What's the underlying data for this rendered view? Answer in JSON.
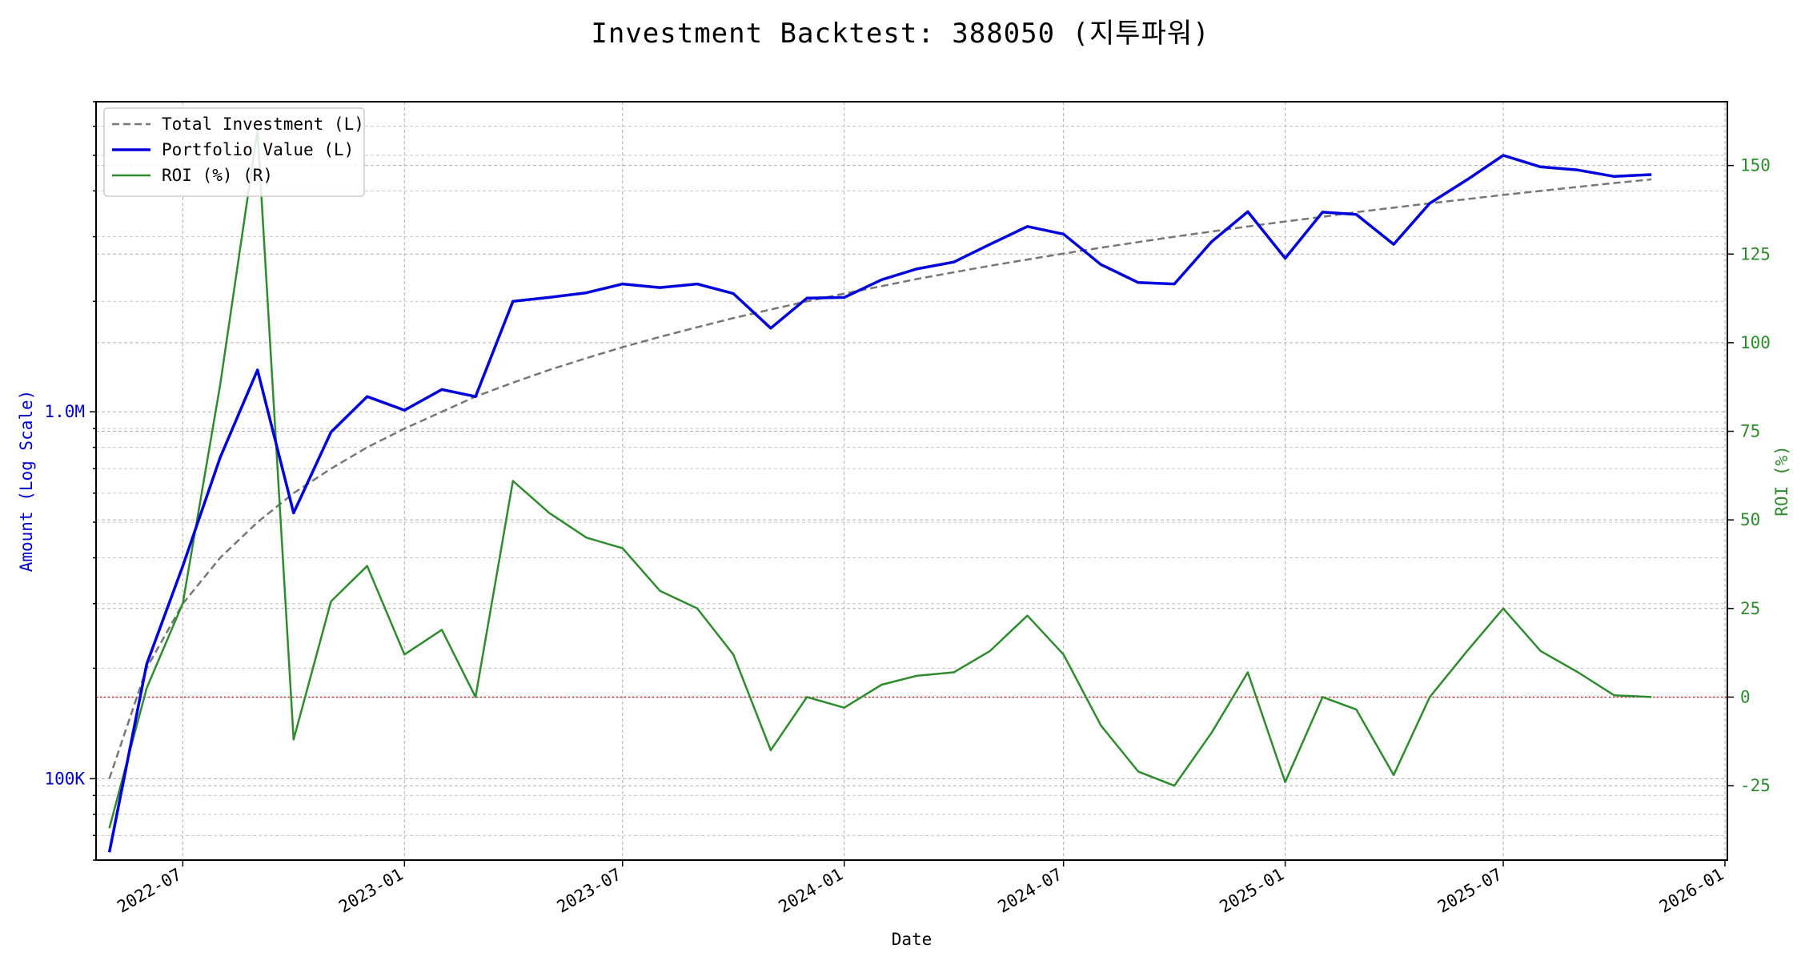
{
  "chart_data": {
    "type": "line",
    "title": "Investment Backtest: 388050 (지투파워)",
    "xlabel": "Date",
    "ylabel_left": "Amount (Log Scale)",
    "ylabel_right": "ROI (%)",
    "left_scale": "log",
    "left_ylim": [
      60000,
      7000000
    ],
    "left_ticks": [
      {
        "value": 100000,
        "label": "100K"
      },
      {
        "value": 1000000,
        "label": "1.0M"
      }
    ],
    "right_ylim": [
      -46,
      168
    ],
    "right_ticks": [
      -25,
      0,
      25,
      50,
      75,
      100,
      125,
      150
    ],
    "x_range": [
      "2022-04-20",
      "2026-01-03"
    ],
    "x_ticks": [
      "2022-07",
      "2023-01",
      "2023-07",
      "2024-01",
      "2024-07",
      "2025-01",
      "2025-07",
      "2026-01"
    ],
    "grid": true,
    "legend_position": "upper-left",
    "zero_line_color": "#d62728",
    "dates": [
      "2022-05-01",
      "2022-06-01",
      "2022-07-01",
      "2022-08-01",
      "2022-09-01",
      "2022-10-01",
      "2022-11-01",
      "2022-12-01",
      "2023-01-01",
      "2023-02-01",
      "2023-03-01",
      "2023-04-01",
      "2023-05-01",
      "2023-06-01",
      "2023-07-01",
      "2023-08-01",
      "2023-09-01",
      "2023-10-01",
      "2023-11-01",
      "2023-12-01",
      "2024-01-01",
      "2024-02-01",
      "2024-03-01",
      "2024-04-01",
      "2024-05-01",
      "2024-06-01",
      "2024-07-01",
      "2024-08-01",
      "2024-09-01",
      "2024-10-01",
      "2024-11-01",
      "2024-12-01",
      "2025-01-01",
      "2025-02-01",
      "2025-03-01",
      "2025-04-01",
      "2025-05-01",
      "2025-06-01",
      "2025-07-01",
      "2025-08-01",
      "2025-09-01",
      "2025-10-01",
      "2025-11-01"
    ],
    "series": [
      {
        "name": "Total Investment (L)",
        "axis": "left",
        "color": "#777777",
        "style": "dashed",
        "values": [
          100000,
          200000,
          300000,
          400000,
          500000,
          600000,
          700000,
          800000,
          900000,
          1000000,
          1100000,
          1200000,
          1300000,
          1400000,
          1500000,
          1600000,
          1700000,
          1800000,
          1900000,
          2000000,
          2100000,
          2200000,
          2300000,
          2400000,
          2500000,
          2600000,
          2700000,
          2800000,
          2900000,
          3000000,
          3100000,
          3200000,
          3300000,
          3400000,
          3500000,
          3600000,
          3700000,
          3800000,
          3900000,
          4000000,
          4100000,
          4200000,
          4300000
        ]
      },
      {
        "name": "Portfolio Value (L)",
        "axis": "left",
        "color": "#0000dd",
        "style": "solid",
        "values": [
          63000,
          205000,
          380000,
          750000,
          1300000,
          530000,
          880000,
          1100000,
          1010000,
          1150000,
          1100000,
          2000000,
          2050000,
          2110000,
          2230000,
          2180000,
          2230000,
          2100000,
          1690000,
          2040000,
          2050000,
          2290000,
          2450000,
          2560000,
          2860000,
          3200000,
          3050000,
          2520000,
          2250000,
          2230000,
          2910000,
          3510000,
          2620000,
          3500000,
          3450000,
          2860000,
          3700000,
          4290000,
          5000000,
          4650000,
          4560000,
          4380000,
          4430000
        ]
      },
      {
        "name": "ROI (%) (R)",
        "axis": "right",
        "color": "#2e8b2e",
        "style": "solid",
        "values": [
          -37,
          2.5,
          26.5,
          88,
          160,
          -12,
          27,
          37,
          12,
          19,
          0,
          61,
          52,
          45,
          42,
          30,
          25,
          12,
          -15,
          0,
          -3,
          3.5,
          6,
          7,
          13,
          23,
          12,
          -8,
          -21,
          -25,
          -10,
          7,
          -24,
          0,
          -3.5,
          -22,
          0,
          13,
          25,
          13,
          7,
          0.5,
          0
        ]
      }
    ]
  }
}
